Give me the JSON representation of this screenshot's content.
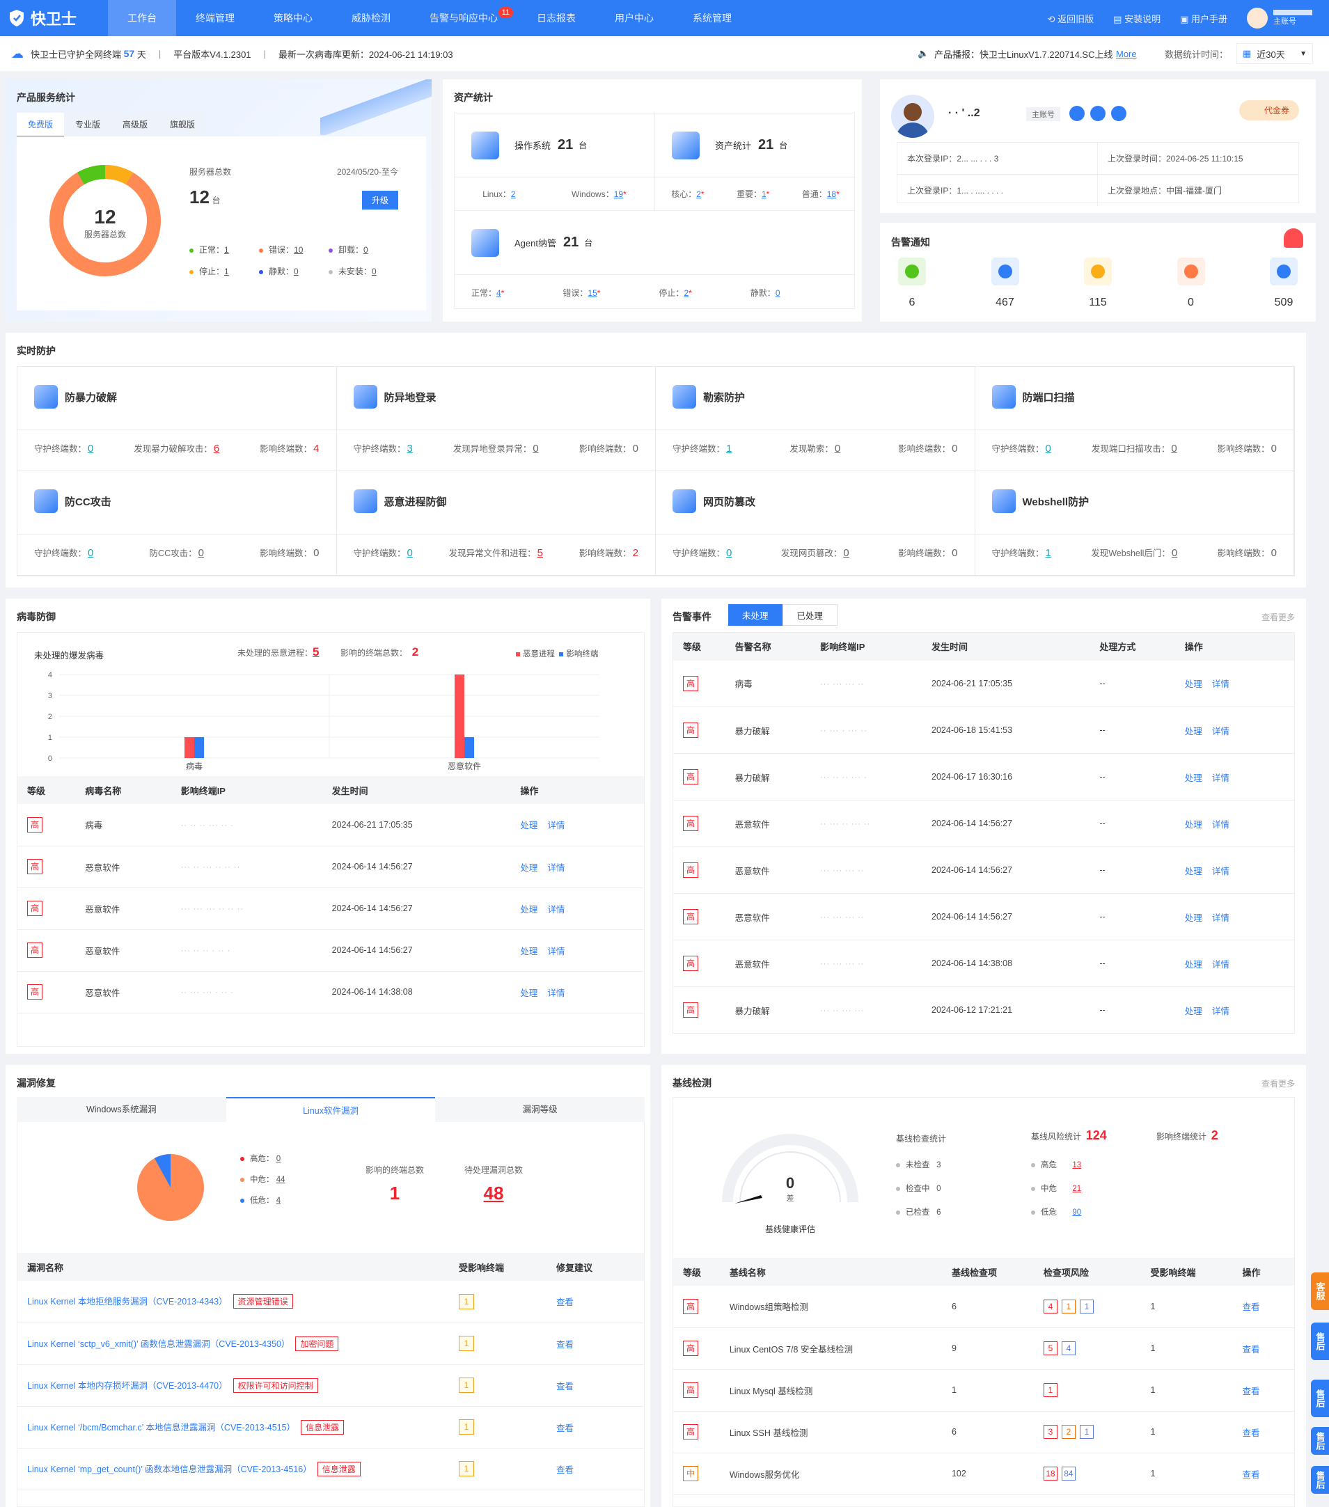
{
  "app": {
    "name": "快卫士",
    "nav": [
      "工作台",
      "终端管理",
      "策略中心",
      "威胁检测",
      "告警与响应中心",
      "日志报表",
      "用户中心",
      "系统管理"
    ],
    "alert_badge": "11",
    "right": [
      "返回旧版",
      "安装说明",
      "用户手册"
    ],
    "user_label": "主账号"
  },
  "infobar": {
    "protect_prefix": "快卫士已守护全网终端",
    "protect_days": "57",
    "protect_unit": "天",
    "version": "平台版本V4.1.2301",
    "virus_update": "最新一次病毒库更新：2024-06-21 14:19:03",
    "broadcast": "产品播报：快卫士LinuxV1.7.220714.SC上线",
    "more": "More",
    "stat_label": "数据统计时间：",
    "range": "近30天"
  },
  "product": {
    "title": "产品服务统计",
    "tabs": [
      "免费版",
      "专业版",
      "高级版",
      "旗舰版"
    ],
    "total": "12",
    "total_label": "服务器总数",
    "servers_label": "服务器总数",
    "date": "2024/05/20-至今",
    "count": "12",
    "unit": "台",
    "upgrade": "升级",
    "status": [
      {
        "label": "正常：",
        "val": "1",
        "color": "#52c41a"
      },
      {
        "label": "错误：",
        "val": "10",
        "color": "#ff7a45"
      },
      {
        "label": "卸载：",
        "val": "0",
        "color": "#9254de"
      },
      {
        "label": "停止：",
        "val": "1",
        "color": "#faad14"
      },
      {
        "label": "静默：",
        "val": "0",
        "color": "#2f54eb"
      },
      {
        "label": "未安装：",
        "val": "0",
        "color": "#bfbfbf"
      }
    ]
  },
  "assets": {
    "title": "资产统计",
    "os_label": "操作系统",
    "os_count": "21",
    "asset_label": "资产统计",
    "asset_count": "21",
    "unit": "台",
    "linux": "Linux：",
    "linux_v": "2",
    "windows": "Windows：",
    "windows_v": "19",
    "core": "核心：",
    "core_v": "2",
    "important": "重要：",
    "important_v": "1",
    "normal": "普通：",
    "normal_v": "18",
    "agent_label": "Agent纳管",
    "agent_count": "21",
    "a_normal": "正常：",
    "a_normal_v": "4",
    "a_error": "错误：",
    "a_error_v": "15",
    "a_stop": "停止：",
    "a_stop_v": "2",
    "a_silent": "静默：",
    "a_silent_v": "0"
  },
  "user": {
    "name": "· ·   ' ..2",
    "role": "主账号",
    "coupon": "代金券",
    "this_ip": "本次登录IP：2... ... . . . 3",
    "last_time": "上次登录时间：2024-06-25 11:10:15",
    "last_ip": "上次登录IP：1... . .... . . . .",
    "last_loc": "上次登录地点：中国-福建-厦门"
  },
  "alerts": {
    "title": "告警通知",
    "items": [
      {
        "v": "6",
        "c": "#52c41a",
        "bg": "#e8f7e0"
      },
      {
        "v": "467",
        "c": "#2e7cf6",
        "bg": "#e4efff"
      },
      {
        "v": "115",
        "c": "#faad14",
        "bg": "#fff6dd"
      },
      {
        "v": "0",
        "c": "#ff7a45",
        "bg": "#ffefe6"
      },
      {
        "v": "509",
        "c": "#2e7cf6",
        "bg": "#e4efff"
      }
    ]
  },
  "realtime": {
    "title": "实时防护",
    "items": [
      {
        "name": "防暴力破解",
        "a": "守护终端数：",
        "av": "0",
        "b": "发现暴力破解攻击：",
        "bv": "6",
        "c": "影响终端数：",
        "cv": "4"
      },
      {
        "name": "防异地登录",
        "a": "守护终端数：",
        "av": "3",
        "b": "发现异地登录异常：",
        "bv": "0",
        "c": "影响终端数：",
        "cv": "0"
      },
      {
        "name": "勒索防护",
        "a": "守护终端数：",
        "av": "1",
        "b": "发现勒索：",
        "bv": "0",
        "c": "影响终端数：",
        "cv": "0"
      },
      {
        "name": "防端口扫描",
        "a": "守护终端数：",
        "av": "0",
        "b": "发现端口扫描攻击：",
        "bv": "0",
        "c": "影响终端数：",
        "cv": "0"
      },
      {
        "name": "防CC攻击",
        "a": "守护终端数：",
        "av": "0",
        "b": "防CC攻击：",
        "bv": "0",
        "c": "影响终端数：",
        "cv": "0"
      },
      {
        "name": "恶意进程防御",
        "a": "守护终端数：",
        "av": "0",
        "b": "发现异常文件和进程：",
        "bv": "5",
        "c": "影响终端数：",
        "cv": "2"
      },
      {
        "name": "网页防篡改",
        "a": "守护终端数：",
        "av": "0",
        "b": "发现网页篡改：",
        "bv": "0",
        "c": "影响终端数：",
        "cv": "0"
      },
      {
        "name": "Webshell防护",
        "a": "守护终端数：",
        "av": "1",
        "b": "发现Webshell后门：",
        "bv": "0",
        "c": "影响终端数：",
        "cv": "0"
      }
    ]
  },
  "virus": {
    "title": "病毒防御",
    "sub": "未处理的爆发病毒",
    "proc_label": "未处理的恶意进程：",
    "proc_v": "5",
    "term_label": "影响的终端总数：",
    "term_v": "2",
    "legend1": "恶意进程",
    "legend2": "影响终端",
    "headers": [
      "等级",
      "病毒名称",
      "影响终端IP",
      "发生时间",
      "操作"
    ],
    "rows": [
      {
        "lvl": "高",
        "name": "病毒",
        "ip": "·· ·· ·· ··· ·· ·",
        "time": "2024-06-21 17:05:35"
      },
      {
        "lvl": "高",
        "name": "恶意软件",
        "ip": "··· ·· ··· ·· ·· ··",
        "time": "2024-06-14 14:56:27"
      },
      {
        "lvl": "高",
        "name": "恶意软件",
        "ip": "··· ··· ··· ·· ·· ··",
        "time": "2024-06-14 14:56:27"
      },
      {
        "lvl": "高",
        "name": "恶意软件",
        "ip": "··· ·· ·· · ·· ·",
        "time": "2024-06-14 14:56:27"
      },
      {
        "lvl": "高",
        "name": "恶意软件",
        "ip": "·· ··· ··· · ·· ·",
        "time": "2024-06-14 14:38:08"
      }
    ],
    "op1": "处理",
    "op2": "详情"
  },
  "chart_data": {
    "type": "bar",
    "categories": [
      "病毒",
      "恶意软件"
    ],
    "series": [
      {
        "name": "恶意进程",
        "values": [
          1,
          4
        ],
        "color": "#ff4d4f"
      },
      {
        "name": "影响终端",
        "values": [
          1,
          1
        ],
        "color": "#2e7cf6"
      }
    ],
    "ylim": [
      0,
      4
    ],
    "yticks": [
      "0",
      "1",
      "2",
      "3",
      "4"
    ]
  },
  "events": {
    "title": "告警事件",
    "tab1": "未处理",
    "tab2": "已处理",
    "more": "查看更多",
    "headers": [
      "等级",
      "告警名称",
      "影响终端IP",
      "发生时间",
      "处理方式",
      "操作"
    ],
    "rows": [
      {
        "lvl": "高",
        "name": "病毒",
        "ip": "··· ··· ··· ··",
        "time": "2024-06-21 17:05:35",
        "way": "--"
      },
      {
        "lvl": "高",
        "name": "暴力破解",
        "ip": "·· ··· · ··· ··",
        "time": "2024-06-18 15:41:53",
        "way": "--"
      },
      {
        "lvl": "高",
        "name": "暴力破解",
        "ip": "··· ·· ·· ··· ·",
        "time": "2024-06-17 16:30:16",
        "way": "--"
      },
      {
        "lvl": "高",
        "name": "恶意软件",
        "ip": "·· ··· ·· ··· ··",
        "time": "2024-06-14 14:56:27",
        "way": "--"
      },
      {
        "lvl": "高",
        "name": "恶意软件",
        "ip": "··· ··· ··· ··",
        "time": "2024-06-14 14:56:27",
        "way": "--"
      },
      {
        "lvl": "高",
        "name": "恶意软件",
        "ip": "··· ··· ··· ··",
        "time": "2024-06-14 14:56:27",
        "way": "--"
      },
      {
        "lvl": "高",
        "name": "恶意软件",
        "ip": "··· ··· ··· ··",
        "time": "2024-06-14 14:38:08",
        "way": "--"
      },
      {
        "lvl": "高",
        "name": "暴力破解",
        "ip": "··· ·· ··· ···",
        "time": "2024-06-12 17:21:21",
        "way": "--"
      }
    ],
    "op1": "处理",
    "op2": "详情"
  },
  "vuln": {
    "title": "漏洞修复",
    "tabs": [
      "Windows系统漏洞",
      "Linux软件漏洞",
      "漏洞等级"
    ],
    "high": "高危：",
    "high_v": "0",
    "mid": "中危：",
    "mid_v": "44",
    "low": "低危：",
    "low_v": "4",
    "affect_label": "影响的终端总数",
    "affect_v": "1",
    "pending_label": "待处理漏洞总数",
    "pending_v": "48",
    "headers": [
      "漏洞名称",
      "受影响终端",
      "修复建议"
    ],
    "view": "查看",
    "rows": [
      {
        "name": "Linux Kernel 本地拒绝服务漏洞（CVE-2013-4343）",
        "tag": "资源管理错误",
        "n": "1"
      },
      {
        "name": "Linux Kernel ‘sctp_v6_xmit()’ 函数信息泄露漏洞（CVE-2013-4350）",
        "tag": "加密问题",
        "n": "1"
      },
      {
        "name": "Linux Kernel 本地内存损坏漏洞（CVE-2013-4470）",
        "tag": "权限许可和访问控制",
        "n": "1"
      },
      {
        "name": "Linux Kernel ‘/bcm/Bcmchar.c’ 本地信息泄露漏洞（CVE-2013-4515）",
        "tag": "信息泄露",
        "n": "1"
      },
      {
        "name": "Linux Kernel ‘mp_get_count()’ 函数本地信息泄露漏洞（CVE-2013-4516）",
        "tag": "信息泄露",
        "n": "1"
      }
    ]
  },
  "baseline": {
    "title": "基线检测",
    "more": "查看更多",
    "score": "0",
    "score_unit": "差",
    "health": "基线健康评估",
    "stat1": "基线检查统计",
    "stat2": "基线风险统计",
    "stat2_v": "124",
    "stat3": "影响终端统计",
    "stat3_v": "2",
    "unchecked": "未检查",
    "unchecked_v": "3",
    "checking": "检查中",
    "checking_v": "0",
    "checked": "已检查",
    "checked_v": "6",
    "hi": "高危",
    "hi_v": "13",
    "mi": "中危",
    "mi_v": "21",
    "lo": "低危",
    "lo_v": "90",
    "headers": [
      "等级",
      "基线名称",
      "基线检查项",
      "检查项风险",
      "受影响终端",
      "操作"
    ],
    "view": "查看",
    "rows": [
      {
        "lvl": "高",
        "name": "Windows组策略检测",
        "items": "6",
        "r": [
          [
            "r",
            "4"
          ],
          [
            "o",
            "1"
          ],
          [
            "b",
            "1"
          ]
        ],
        "n": "1"
      },
      {
        "lvl": "高",
        "name": "Linux CentOS 7/8 安全基线检测",
        "items": "9",
        "r": [
          [
            "r",
            "5"
          ],
          [
            "b",
            "4"
          ]
        ],
        "n": "1"
      },
      {
        "lvl": "高",
        "name": "Linux Mysql 基线检测",
        "items": "1",
        "r": [
          [
            "r",
            "1"
          ]
        ],
        "n": "1"
      },
      {
        "lvl": "高",
        "name": "Linux SSH 基线检测",
        "items": "6",
        "r": [
          [
            "r",
            "3"
          ],
          [
            "o",
            "2"
          ],
          [
            "b",
            "1"
          ]
        ],
        "n": "1"
      },
      {
        "lvl": "中",
        "name": "Windows服务优化",
        "items": "102",
        "r": [
          [
            "r",
            "18"
          ],
          [
            "b",
            "84"
          ]
        ],
        "n": "1"
      }
    ]
  },
  "side": [
    "客服",
    "售后",
    "售后",
    "售后",
    "售后"
  ]
}
